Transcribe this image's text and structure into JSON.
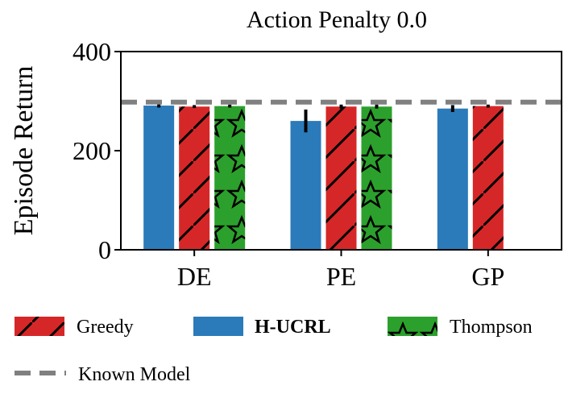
{
  "chart_data": {
    "type": "bar",
    "title": "Action Penalty 0.0",
    "xlabel": "",
    "ylabel": "Episode Return",
    "categories": [
      "DE",
      "PE",
      "GP"
    ],
    "ylim": [
      0,
      400
    ],
    "yticks": [
      "0",
      "200",
      "400"
    ],
    "series": [
      {
        "name": "H-UCRL",
        "color": "#2b7bba",
        "hatch": "none",
        "values": [
          291,
          260,
          285
        ],
        "errors": [
          4,
          23,
          7
        ]
      },
      {
        "name": "Greedy",
        "color": "#d62728",
        "hatch": "diagonal",
        "values": [
          289,
          289,
          290
        ],
        "errors": [
          3,
          4,
          3
        ]
      },
      {
        "name": "Thompson",
        "color": "#2ca02c",
        "hatch": "star",
        "values": [
          290,
          289,
          null
        ],
        "errors": [
          3,
          4,
          null
        ]
      }
    ],
    "reference_lines": [
      {
        "name": "Known Model",
        "value": 298,
        "style": "dashed",
        "color": "#808080"
      }
    ],
    "legend": {
      "placement": "bottom",
      "entries": [
        {
          "label": "Greedy",
          "series": "Greedy",
          "bold": false
        },
        {
          "label": "H-UCRL",
          "series": "H-UCRL",
          "bold": true
        },
        {
          "label": "Thompson",
          "series": "Thompson",
          "bold": false
        },
        {
          "label": "Known Model",
          "series": "Known Model",
          "bold": false
        }
      ]
    }
  }
}
